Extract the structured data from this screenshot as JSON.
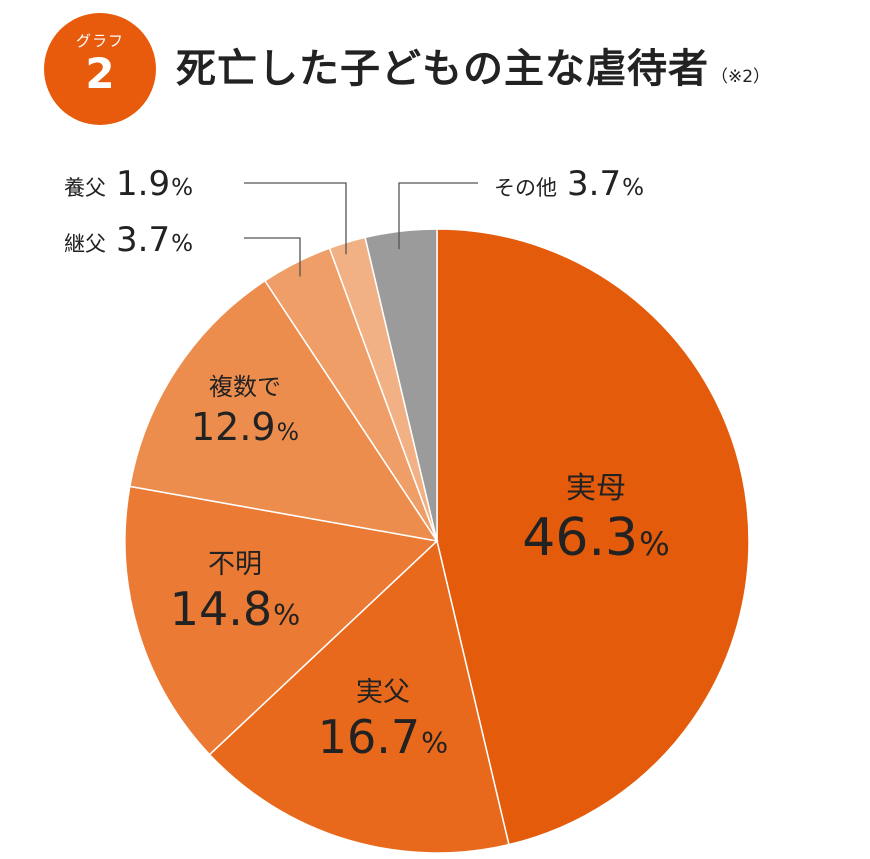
{
  "header": {
    "badge_label": "グラフ",
    "badge_number": "2",
    "title": "死亡した子どもの主な虐待者",
    "note": "（※2）"
  },
  "chart_data": {
    "type": "pie",
    "unit": "%",
    "start": "12 o'clock",
    "direction": "clockwise",
    "slices": [
      {
        "label": "実母",
        "value": 46.3,
        "value_text": "46.3",
        "color": "#E35B0B"
      },
      {
        "label": "実父",
        "value": 16.7,
        "value_text": "16.7",
        "color": "#E8691B"
      },
      {
        "label": "不明",
        "value": 14.8,
        "value_text": "14.8",
        "color": "#EA7A34"
      },
      {
        "label": "複数で",
        "value": 12.9,
        "value_text": "12.9",
        "color": "#EC8D4E"
      },
      {
        "label": "継父",
        "value": 3.7,
        "value_text": "3.7",
        "color": "#EF9E68"
      },
      {
        "label": "養父",
        "value": 1.9,
        "value_text": "1.9",
        "color": "#F2B185"
      },
      {
        "label": "その他",
        "value": 3.7,
        "value_text": "3.7",
        "color": "#9B9B9B"
      }
    ]
  }
}
